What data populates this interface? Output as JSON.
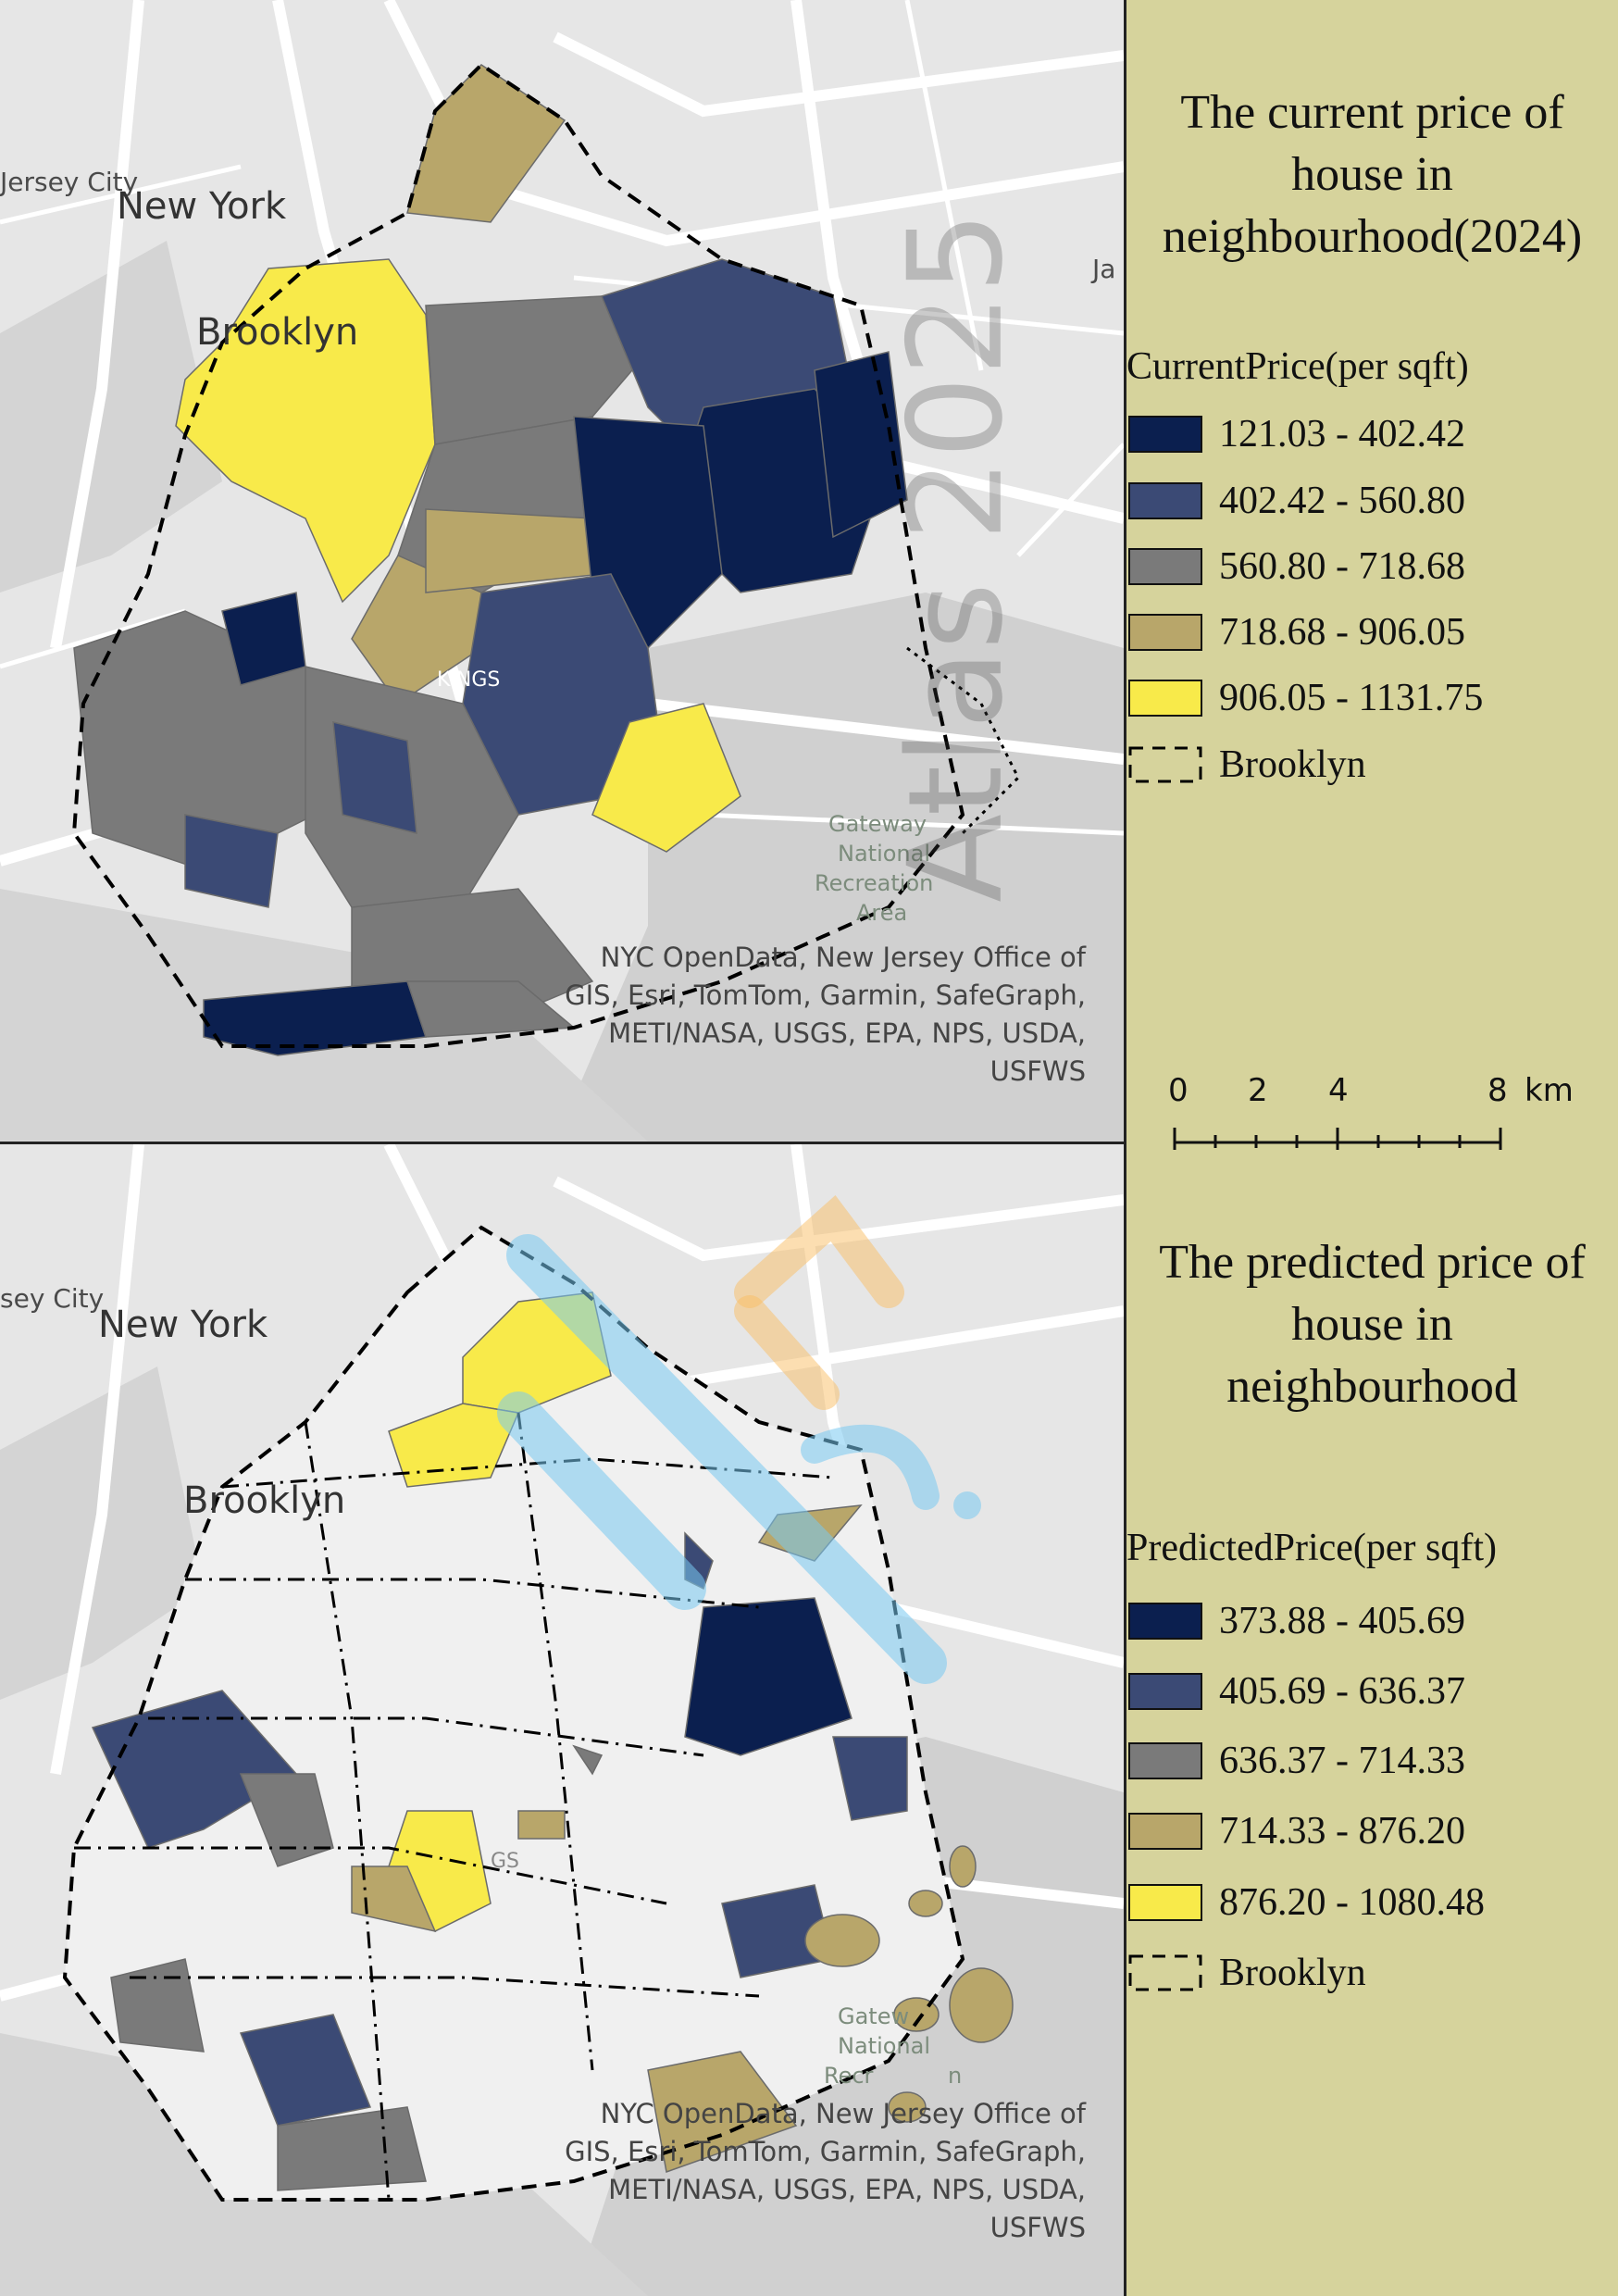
{
  "map_top": {
    "place_labels": [
      "New York",
      "Jersey City",
      "Brooklyn",
      "KINGS",
      "Gateway",
      "National",
      "Recreation",
      "Area",
      "Ja"
    ],
    "attribution": [
      "NYC OpenData, New Jersey Office of",
      "GIS, Esri, TomTom, Garmin, SafeGraph,",
      "METI/NASA, USGS, EPA, NPS, USDA,",
      "USFWS"
    ],
    "watermark": "Atlas 2025"
  },
  "map_bottom": {
    "place_labels": [
      "New York",
      "sey City",
      "Brooklyn",
      "GS",
      "Gatew",
      "National",
      "Recr",
      "n"
    ],
    "attribution": [
      "NYC OpenData, New Jersey Office of",
      "GIS, Esri, TomTom, Garmin, SafeGraph,",
      "METI/NASA, USGS, EPA, NPS, USDA,",
      "USFWS"
    ]
  },
  "legend_top": {
    "title": [
      "The current price of",
      "house in",
      "neighbourhood(2024)"
    ],
    "field": "CurrentPrice(per sqft)",
    "classes": [
      {
        "label": "121.03 - 402.42",
        "color": "#0b1f4f"
      },
      {
        "label": "402.42 - 560.80",
        "color": "#3b4a75"
      },
      {
        "label": "560.80 - 718.68",
        "color": "#7a7a7a"
      },
      {
        "label": "718.68 - 906.05",
        "color": "#b8a66a"
      },
      {
        "label": "906.05 - 1131.75",
        "color": "#f8ea4a"
      }
    ],
    "boundary_label": "Brooklyn"
  },
  "legend_bottom": {
    "title": [
      "The predicted price of",
      "house in",
      "neighbourhood"
    ],
    "field": "PredictedPrice(per sqft)",
    "classes": [
      {
        "label": "373.88 - 405.69",
        "color": "#0b1f4f"
      },
      {
        "label": "405.69 - 636.37",
        "color": "#3b4a75"
      },
      {
        "label": "636.37 - 714.33",
        "color": "#7a7a7a"
      },
      {
        "label": "714.33 - 876.20",
        "color": "#b8a66a"
      },
      {
        "label": "876.20 - 1080.48",
        "color": "#f8ea4a"
      }
    ],
    "boundary_label": "Brooklyn"
  },
  "scalebar": {
    "ticks": [
      "0",
      "2",
      "4",
      "8"
    ],
    "unit": "km"
  },
  "colors": {
    "sidebar": "#d6d39c",
    "basemap": "#e4e4e4",
    "land": "#efefef",
    "water": "#cfcfcf",
    "road": "#ffffff"
  }
}
